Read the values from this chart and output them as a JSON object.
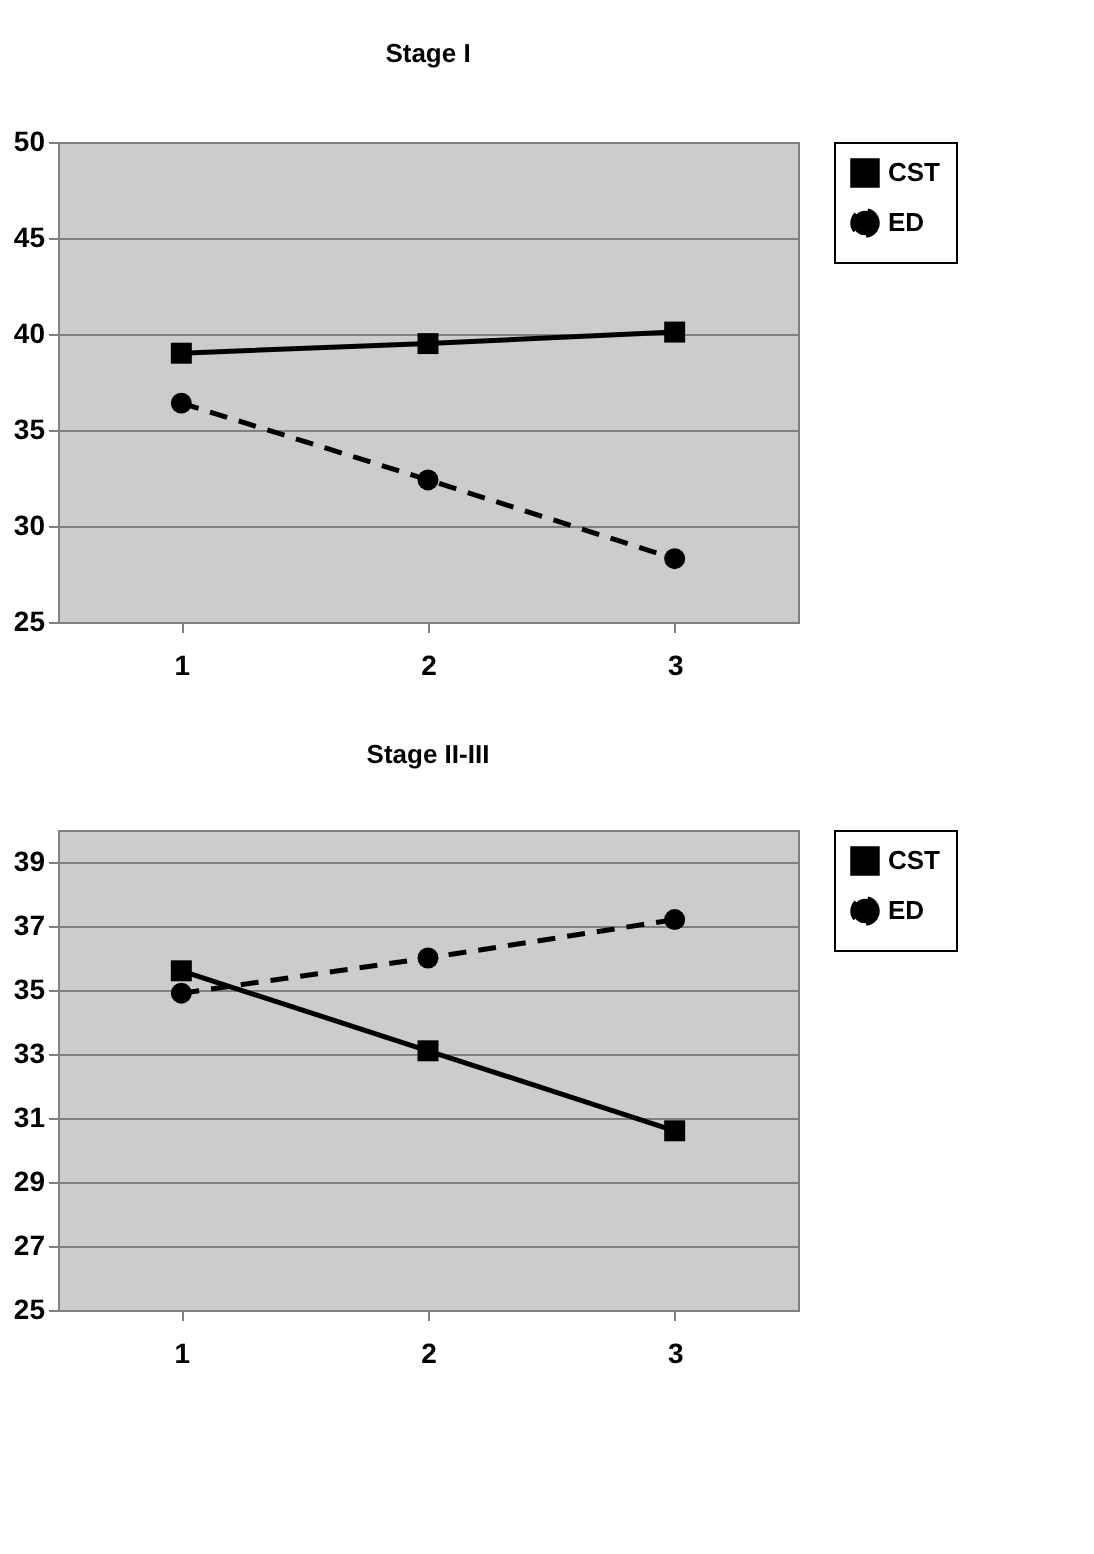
{
  "chart_data": [
    {
      "type": "line",
      "title": "Stage I",
      "categories": [
        "1",
        "2",
        "3"
      ],
      "ylim": [
        25,
        50
      ],
      "yticks": [
        25,
        30,
        35,
        40,
        45,
        50
      ],
      "grid": "y",
      "legend": "right",
      "series": [
        {
          "name": "CST",
          "color": "#000000",
          "values": [
            39.0,
            39.5,
            40.1
          ],
          "marker": "square",
          "line_style": "solid"
        },
        {
          "name": "ED",
          "color": "#000000",
          "values": [
            36.4,
            32.4,
            28.3
          ],
          "marker": "circle",
          "line_style": "dashed"
        }
      ]
    },
    {
      "type": "line",
      "title": "Stage II-III",
      "categories": [
        "1",
        "2",
        "3"
      ],
      "ylim": [
        25,
        40
      ],
      "yticks": [
        25,
        27,
        29,
        31,
        33,
        35,
        37,
        39
      ],
      "grid": "y",
      "legend": "right",
      "series": [
        {
          "name": "CST",
          "color": "#000000",
          "values": [
            35.6,
            33.1,
            30.6
          ],
          "marker": "square",
          "line_style": "solid"
        },
        {
          "name": "ED",
          "color": "#000000",
          "values": [
            34.9,
            36.0,
            37.2
          ],
          "marker": "circle",
          "line_style": "dashed"
        }
      ]
    }
  ]
}
